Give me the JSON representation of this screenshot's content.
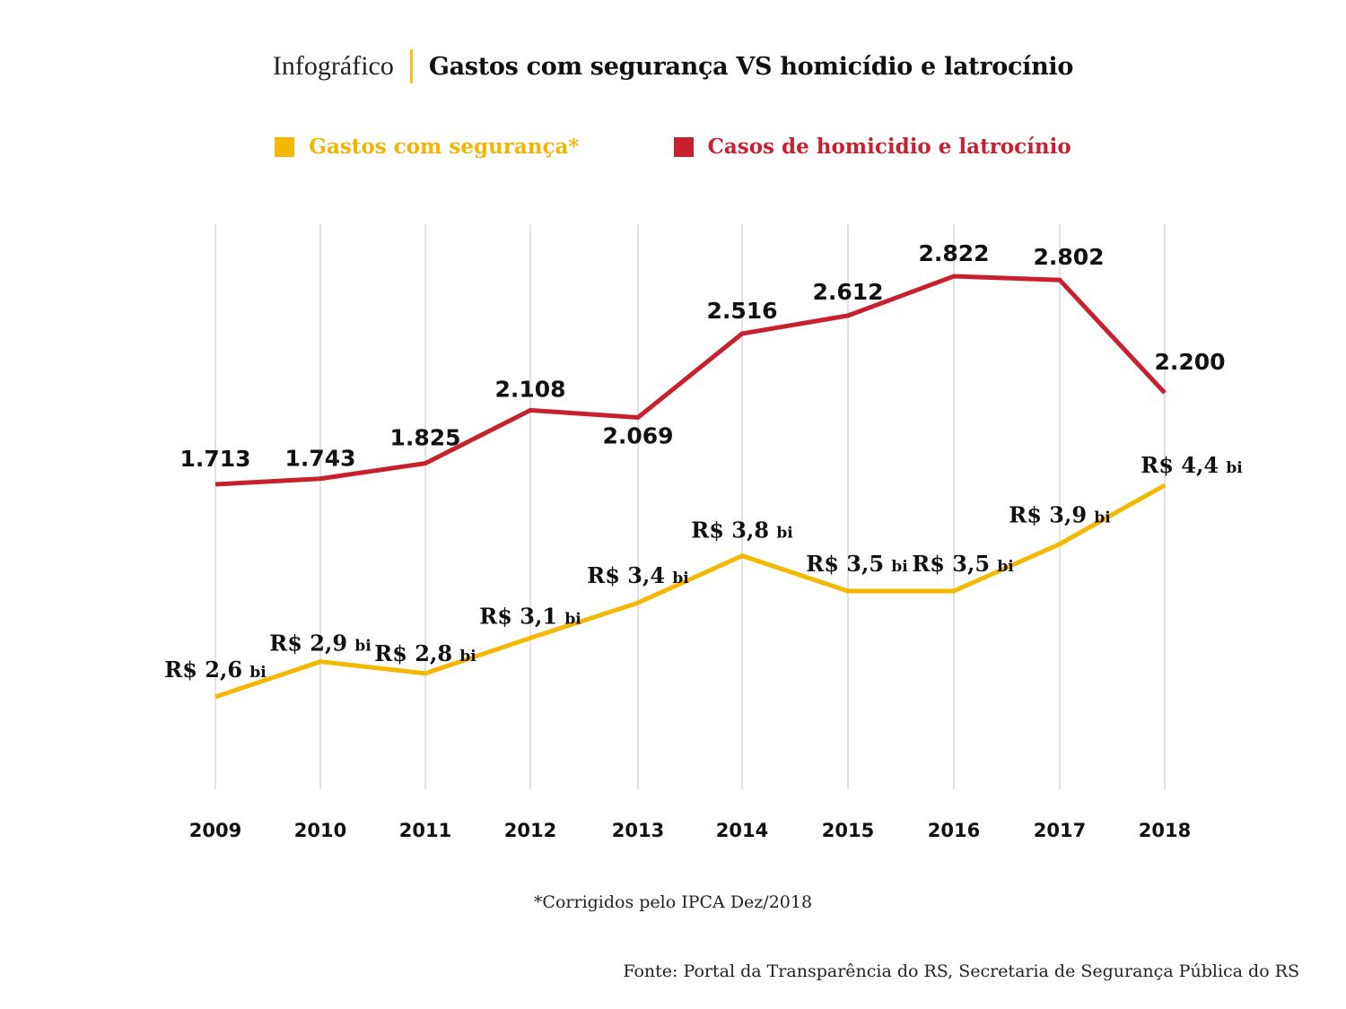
{
  "header": {
    "kicker": "Infográfico",
    "title": "Gastos com segurança VS homicídio e latrocínio"
  },
  "legend": [
    {
      "label": "Gastos com segurança*",
      "color": "#f5b800"
    },
    {
      "label": "Casos de homicidio e latrocínio",
      "color": "#c8202f"
    }
  ],
  "footnote": "*Corrigidos pelo IPCA Dez/2018",
  "source": "Fonte: Portal da Transparência do RS, Secretaria de Segurança Pública do RS",
  "chart_data": {
    "type": "line",
    "title": "Gastos com segurança VS homicídio e latrocínio",
    "xlabel": "",
    "ylabel": "",
    "grid": "vertical",
    "legend_position": "top-center",
    "categories": [
      "2009",
      "2010",
      "2011",
      "2012",
      "2013",
      "2014",
      "2015",
      "2016",
      "2017",
      "2018"
    ],
    "series": [
      {
        "name": "Casos de homicidio e latrocínio",
        "color": "#c8202f",
        "values": [
          1713,
          1743,
          1825,
          2108,
          2069,
          2516,
          2612,
          2822,
          2802,
          2200
        ],
        "labels": [
          "1.713",
          "1.743",
          "1.825",
          "2.108",
          "2.069",
          "2.516",
          "2.612",
          "2.822",
          "2.802",
          "2.200"
        ],
        "label_suffix": ""
      },
      {
        "name": "Gastos com segurança*",
        "color": "#f5b800",
        "unit": "R$ bilhões",
        "values": [
          2.6,
          2.9,
          2.8,
          3.1,
          3.4,
          3.8,
          3.5,
          3.5,
          3.9,
          4.4
        ],
        "labels": [
          "R$ 2,6",
          "R$ 2,9",
          "R$ 2,8",
          "R$ 3,1",
          "R$ 3,4",
          "R$ 3,8",
          "R$ 3,5",
          "R$ 3,5",
          "R$ 3,9",
          "R$ 4,4"
        ],
        "label_suffix": "bi"
      }
    ]
  }
}
